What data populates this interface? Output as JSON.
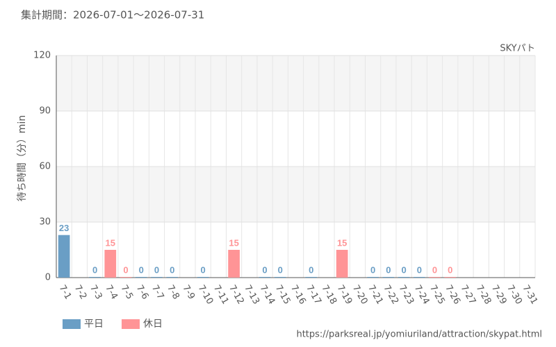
{
  "chart_data": {
    "type": "bar",
    "title": "集計期間：2026-07-01～2026-07-31",
    "subtitle": "SKYパト",
    "y_label": "待ち時間（分）min",
    "source": "https://parksreal.jp/yomiuriland/attraction/skypat.html",
    "categories": [
      "7-1",
      "7-2",
      "7-3",
      "7-4",
      "7-5",
      "7-6",
      "7-7",
      "7-8",
      "7-9",
      "7-10",
      "7-11",
      "7-12",
      "7-13",
      "7-14",
      "7-15",
      "7-16",
      "7-17",
      "7-18",
      "7-19",
      "7-20",
      "7-21",
      "7-22",
      "7-23",
      "7-24",
      "7-25",
      "7-26",
      "7-27",
      "7-28",
      "7-29",
      "7-30",
      "7-31"
    ],
    "category_colors": [
      "#555",
      "#555",
      "#555",
      "#f08080",
      "#f08080",
      "#555",
      "#555",
      "#555",
      "#555",
      "#555",
      "#f08080",
      "#f08080",
      "#555",
      "#555",
      "#555",
      "#555",
      "#555",
      "#f08080",
      "#f08080",
      "#f08080",
      "#555",
      "#555",
      "#555",
      "#555",
      "#f08080",
      "#f08080",
      "#555",
      "#555",
      "#555",
      "#555",
      "#555"
    ],
    "series": [
      {
        "name": "平日",
        "color": "#6a9ec5",
        "values": [
          23,
          null,
          0,
          null,
          null,
          0,
          0,
          0,
          null,
          0,
          null,
          null,
          null,
          0,
          0,
          null,
          0,
          null,
          null,
          null,
          0,
          0,
          0,
          0,
          null,
          null,
          null,
          null,
          null,
          null,
          null
        ]
      },
      {
        "name": "休日",
        "color": "#ff9496",
        "values": [
          null,
          null,
          null,
          15,
          0,
          null,
          null,
          null,
          null,
          null,
          null,
          15,
          null,
          null,
          null,
          null,
          null,
          null,
          15,
          null,
          null,
          null,
          null,
          null,
          0,
          0,
          null,
          null,
          null,
          null,
          null
        ]
      }
    ],
    "ylim": [
      0,
      120
    ],
    "yticks": [
      0,
      30,
      60,
      90,
      120
    ],
    "grid": true,
    "legend": "bottom-left"
  }
}
